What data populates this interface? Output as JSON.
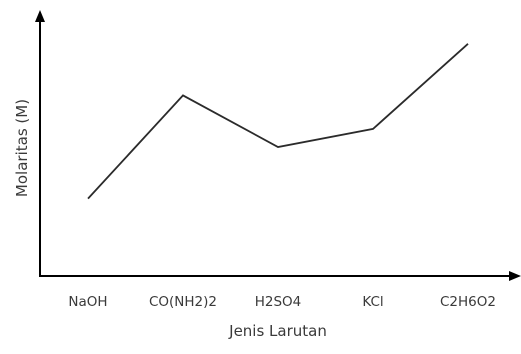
{
  "chart_data": {
    "type": "line",
    "title": "",
    "xlabel": "Jenis Larutan",
    "ylabel": "Molaritas (M)",
    "categories": [
      "NaOH",
      "CO(NH2)2",
      "H2SO4",
      "KCl",
      "C2H6O2"
    ],
    "values": [
      3,
      7,
      5,
      5.7,
      9
    ],
    "ylim": [
      0,
      10
    ],
    "y_ticks_shown": false,
    "grid": false,
    "colors": {
      "line": "#2b2b2b",
      "axis": "#000000",
      "text": "#3a3a3a"
    }
  }
}
